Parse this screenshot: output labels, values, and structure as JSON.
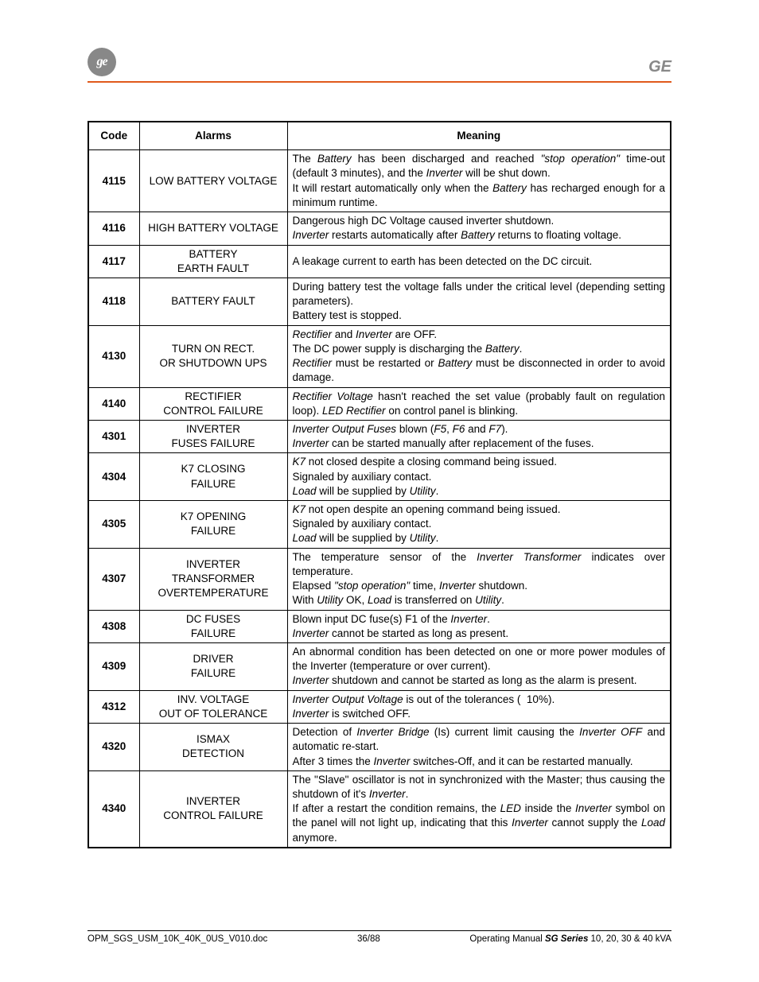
{
  "header": {
    "logo_text": "ge",
    "ge_mark": "GE"
  },
  "table": {
    "headers": {
      "code": "Code",
      "alarms": "Alarms",
      "meaning": "Meaning"
    },
    "rows": [
      {
        "code": "4115",
        "alarm": "LOW BATTERY VOLTAGE",
        "justify": true,
        "meaning_html": "The <span class=\"i\">Battery</span> has been discharged and reached <span class=\"i\">\"stop operation\"</span> time-out (default 3 minutes), and the <span class=\"i\">Inverter</span> will be shut down.<br>It will restart automatically only when the <span class=\"i\">Battery</span> has recharged enough for a minimum runtime."
      },
      {
        "code": "4116",
        "alarm": "HIGH BATTERY VOLTAGE",
        "justify": true,
        "meaning_html": "Dangerous high DC Voltage caused inverter shutdown.<br><span class=\"i\">Inverter</span> restarts automatically after <span class=\"i\">Battery</span> returns to floating voltage."
      },
      {
        "code": "4117",
        "alarm": "BATTERY<br>EARTH FAULT",
        "justify": true,
        "meaning_html": "A leakage current to earth has been detected on the DC circuit."
      },
      {
        "code": "4118",
        "alarm": "BATTERY FAULT",
        "justify": true,
        "meaning_html": "During battery test the voltage falls under the critical level (depending setting parameters).<br>Battery test is stopped."
      },
      {
        "code": "4130",
        "alarm": "TURN ON RECT.<br>OR SHUTDOWN UPS",
        "justify": true,
        "meaning_html": "<span class=\"i\">Rectifier</span> and <span class=\"i\">Inverter</span> are OFF.<br>The DC power supply is discharging the <span class=\"i\">Battery</span>.<br><span class=\"i\">Rectifier</span> must be restarted or <span class=\"i\">Battery</span> must be disconnected in order to avoid damage."
      },
      {
        "code": "4140",
        "alarm": "RECTIFIER<br>CONTROL FAILURE",
        "justify": true,
        "meaning_html": "<span class=\"i\">Rectifier Voltage</span> hasn't reached the set value (probably fault on regulation loop). <span class=\"i\">LED Rectifier</span> on control panel is blinking."
      },
      {
        "code": "4301",
        "alarm": "INVERTER<br>FUSES FAILURE",
        "justify": true,
        "meaning_html": "<span class=\"i\">Inverter Output Fuses</span> blown (<span class=\"i\">F5</span>, <span class=\"i\">F6</span> and <span class=\"i\">F7</span>).<br><span class=\"i\">Inverter</span> can be started manually after replacement of the fuses."
      },
      {
        "code": "4304",
        "alarm": "K7 CLOSING<br>FAILURE",
        "justify": false,
        "meaning_html": "<span class=\"i\">K7</span> not closed despite a closing command being issued.<br>Signaled by auxiliary contact.<br><span class=\"i\">Load</span> will be supplied by <span class=\"i\">Utility</span>."
      },
      {
        "code": "4305",
        "alarm": "K7 OPENING<br>FAILURE",
        "justify": false,
        "meaning_html": "<span class=\"i\">K7</span> not open despite an opening command being issued.<br>Signaled by auxiliary contact.<br><span class=\"i\">Load</span> will be supplied by <span class=\"i\">Utility</span>."
      },
      {
        "code": "4307",
        "alarm": "INVERTER<br>TRANSFORMER<br>OVERTEMPERATURE",
        "justify": true,
        "meaning_html": "The temperature sensor of the <span class=\"i\">Inverter Transformer</span> indicates over temperature.<br>Elapsed <span class=\"i\">\"stop operation\"</span> time, <span class=\"i\">Inverter</span> shutdown.<br>With <span class=\"i\">Utility</span> OK, <span class=\"i\">Load</span> is transferred on <span class=\"i\">Utility</span>."
      },
      {
        "code": "4308",
        "alarm": "DC FUSES<br>FAILURE",
        "justify": false,
        "meaning_html": "Blown input DC fuse(s) F1 of the <span class=\"i\">Inverter</span>.<br><span class=\"i\">Inverter</span> cannot be started as long as present."
      },
      {
        "code": "4309",
        "alarm": "DRIVER<br>FAILURE",
        "justify": true,
        "meaning_html": "An abnormal condition has been detected on one or more power modules of the Inverter (temperature or over current).<br><span class=\"i\">Inverter</span> shutdown and cannot be started as long as the alarm is present."
      },
      {
        "code": "4312",
        "alarm": "INV. VOLTAGE<br>OUT OF TOLERANCE",
        "justify": false,
        "meaning_html": "<span class=\"i\">Inverter Output Voltage</span> is out of the tolerances (&nbsp;&nbsp;10%).<br><span class=\"i\">Inverter</span> is switched OFF."
      },
      {
        "code": "4320",
        "alarm": "ISMAX<br>DETECTION",
        "justify": true,
        "meaning_html": "Detection of <span class=\"i\">Inverter Bridge</span> (Is) current limit causing the <span class=\"i\">Inverter OFF</span> and automatic re-start.<br>After 3 times the <span class=\"i\">Inverter</span> switches-Off, and it can be restarted manually."
      },
      {
        "code": "4340",
        "alarm": "INVERTER<br>CONTROL FAILURE",
        "justify": true,
        "meaning_html": "The \"Slave\" oscillator is not in synchronized with the Master; thus causing the shutdown of it's <span class=\"i\">Inverter</span>.<br>If after a restart the condition remains, the <span class=\"i\">LED</span> inside the <span class=\"i\">Inverter</span> symbol on the panel will not light up, indicating that this <span class=\"i\">Inverter</span> cannot supply the <span class=\"i\">Load</span> anymore."
      }
    ]
  },
  "footer": {
    "left": "OPM_SGS_USM_10K_40K_0US_V010.doc",
    "mid": "36/88",
    "right_prefix": "Operating Manual ",
    "right_series": "SG Series",
    "right_suffix": " 10, 20, 30 & 40 kVA"
  }
}
